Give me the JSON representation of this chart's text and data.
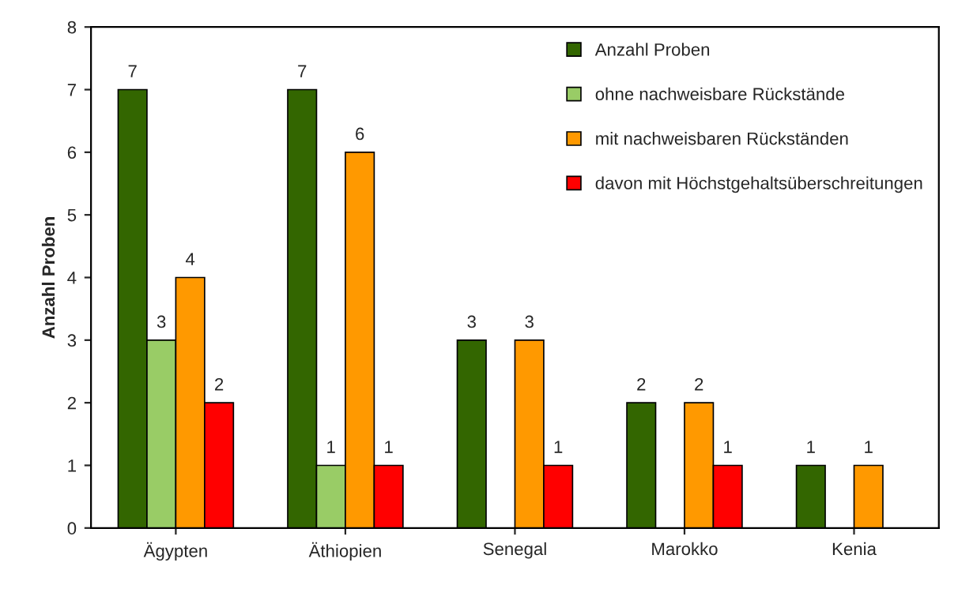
{
  "chart_data": {
    "type": "bar",
    "ylabel": "Anzahl Proben",
    "categories": [
      "Ägypten",
      "Äthiopien",
      "Senegal",
      "Marokko",
      "Kenia"
    ],
    "series": [
      {
        "name": "Anzahl Proben",
        "color": "#336600",
        "values": [
          7,
          7,
          3,
          2,
          1
        ]
      },
      {
        "name": "ohne nachweisbare Rückstände",
        "color": "#99cc66",
        "values": [
          3,
          1,
          null,
          null,
          null
        ]
      },
      {
        "name": "mit nachweisbaren Rückständen",
        "color": "#ff9900",
        "values": [
          4,
          6,
          3,
          2,
          1
        ]
      },
      {
        "name": "davon mit Höchstgehaltsüberschreitungen",
        "color": "#ff0000",
        "values": [
          2,
          1,
          1,
          1,
          null
        ]
      }
    ],
    "ylim": [
      0,
      8
    ],
    "yticks": [
      0,
      1,
      2,
      3,
      4,
      5,
      6,
      7,
      8
    ],
    "grid": false,
    "legend": "top right",
    "data_labels": true
  }
}
